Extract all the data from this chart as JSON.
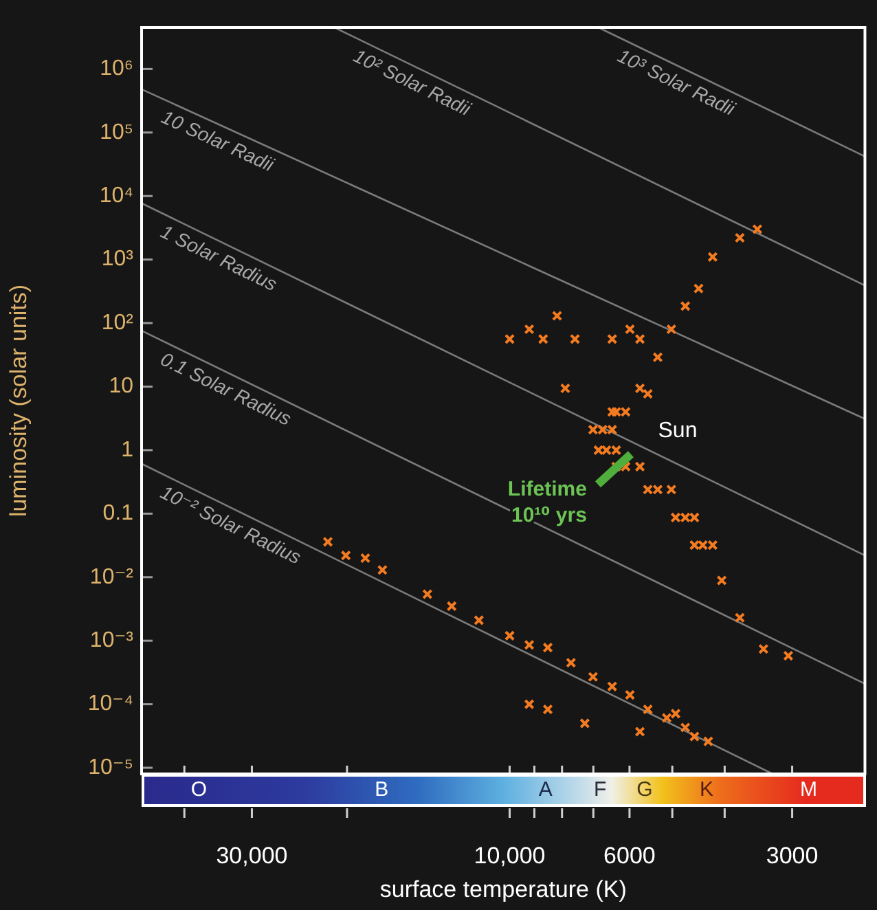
{
  "chart_data": [
    {
      "type": "scatter",
      "xlabel": "surface temperature (K)",
      "ylabel": "luminosity (solar units)",
      "log": "xy",
      "xlim": [
        48000,
        2200
      ],
      "ylim": [
        8e-06,
        4500000.0
      ],
      "xticks": [
        {
          "value": 40000,
          "label": null
        },
        {
          "value": 30000,
          "label": "30,000"
        },
        {
          "value": 20000,
          "label": null
        },
        {
          "value": 10000,
          "label": "10,000"
        },
        {
          "value": 9000,
          "label": null
        },
        {
          "value": 8000,
          "label": null
        },
        {
          "value": 7000,
          "label": null
        },
        6000,
        {
          "value": 5000,
          "label": null
        },
        {
          "value": 4000,
          "label": null
        },
        3000
      ],
      "yticks": [
        {
          "value": 1000000,
          "label": "10⁶"
        },
        {
          "value": 100000,
          "label": "10⁵"
        },
        {
          "value": 10000,
          "label": "10⁴"
        },
        {
          "value": 1000,
          "label": "10³"
        },
        {
          "value": 100,
          "label": "10²"
        },
        10,
        1,
        0.1,
        {
          "value": 0.01,
          "label": "10⁻²"
        },
        {
          "value": 0.001,
          "label": "10⁻³"
        },
        {
          "value": 0.0001,
          "label": "10⁻⁴"
        },
        {
          "value": 1e-05,
          "label": "10⁻⁵"
        }
      ],
      "annotations": [
        {
          "text": "Sun",
          "x": 5800,
          "y": 1
        },
        {
          "text": "Lifetime 10¹⁰ yrs",
          "x": 6400,
          "y": 0.5
        }
      ],
      "series": [
        {
          "type": "line",
          "name": "10³ Solar Radii",
          "color": "#7a7a7a",
          "x": [
            6850,
            2200
          ],
          "values": [
            4500000.0,
            42000
          ]
        },
        {
          "type": "line",
          "name": "10² Solar Radii",
          "color": "#7a7a7a",
          "x": [
            21100,
            2200
          ],
          "values": [
            4500000.0,
            390
          ]
        },
        {
          "type": "line",
          "name": "10 Solar Radii",
          "color": "#7a7a7a",
          "x": [
            48000,
            2200
          ],
          "values": [
            480000,
            3.1
          ]
        },
        {
          "type": "line",
          "name": "1 Solar Radius",
          "color": "#7a7a7a",
          "x": [
            48000,
            2200
          ],
          "values": [
            7700,
            0.022
          ]
        },
        {
          "type": "line",
          "name": "0.1 Solar Radius",
          "color": "#7a7a7a",
          "x": [
            48000,
            2200
          ],
          "values": [
            76,
            0.00021
          ]
        },
        {
          "type": "line",
          "name": "10⁻² Solar Radius",
          "color": "#7a7a7a",
          "x": [
            48000,
            3260
          ],
          "values": [
            0.61,
            8e-06
          ]
        },
        {
          "color": "#f47b20",
          "marker": "cross",
          "x": [
            5550,
            6350,
            6460,
            6100,
            6730,
            7010,
            6460,
            6620,
            6850,
            6350,
            6100,
            6350,
            5740,
            5320,
            5550,
            5020,
            4730,
            4930,
            4550,
            4390,
            4550,
            4210,
            4050,
            3750,
            3390,
            3050,
            5320,
            5740,
            5020,
            4730,
            4470,
            4210,
            3750,
            3480,
            10000,
            8670,
            7570,
            6460,
            5740,
            8170,
            7890,
            5990,
            9200,
            21700,
            20100,
            18500,
            17200,
            14200,
            12800,
            11400,
            10000,
            9200,
            8500,
            7700,
            7010,
            6460,
            5990,
            5550,
            5120,
            4730,
            9200,
            8500,
            7260,
            5740,
            4930,
            4550,
            4290
          ],
          "values": [
            7.7,
            4.0,
            4.0,
            4.0,
            2.1,
            2.1,
            2.1,
            1.0,
            1.0,
            1.0,
            0.55,
            0.55,
            0.55,
            0.24,
            0.24,
            0.24,
            0.087,
            0.087,
            0.087,
            0.032,
            0.032,
            0.032,
            0.0089,
            0.0023,
            0.00074,
            0.00058,
            29,
            9.4,
            80,
            185,
            350,
            1100,
            2200,
            3000,
            56,
            56,
            56,
            56,
            56,
            130,
            9.4,
            80,
            80,
            0.036,
            0.022,
            0.02,
            0.013,
            0.0054,
            0.0035,
            0.0021,
            0.0012,
            0.00086,
            0.00078,
            0.00045,
            0.00027,
            0.00019,
            0.00014,
            8.3e-05,
            6.1e-05,
            4.3e-05,
            0.0001,
            8.3e-05,
            5e-05,
            3.7e-05,
            7.1e-05,
            3.1e-05,
            2.6e-05
          ]
        }
      ]
    },
    {
      "type": "other",
      "annotations": [
        "O",
        "B",
        "A",
        "F",
        "G",
        "K",
        "M"
      ]
    }
  ]
}
